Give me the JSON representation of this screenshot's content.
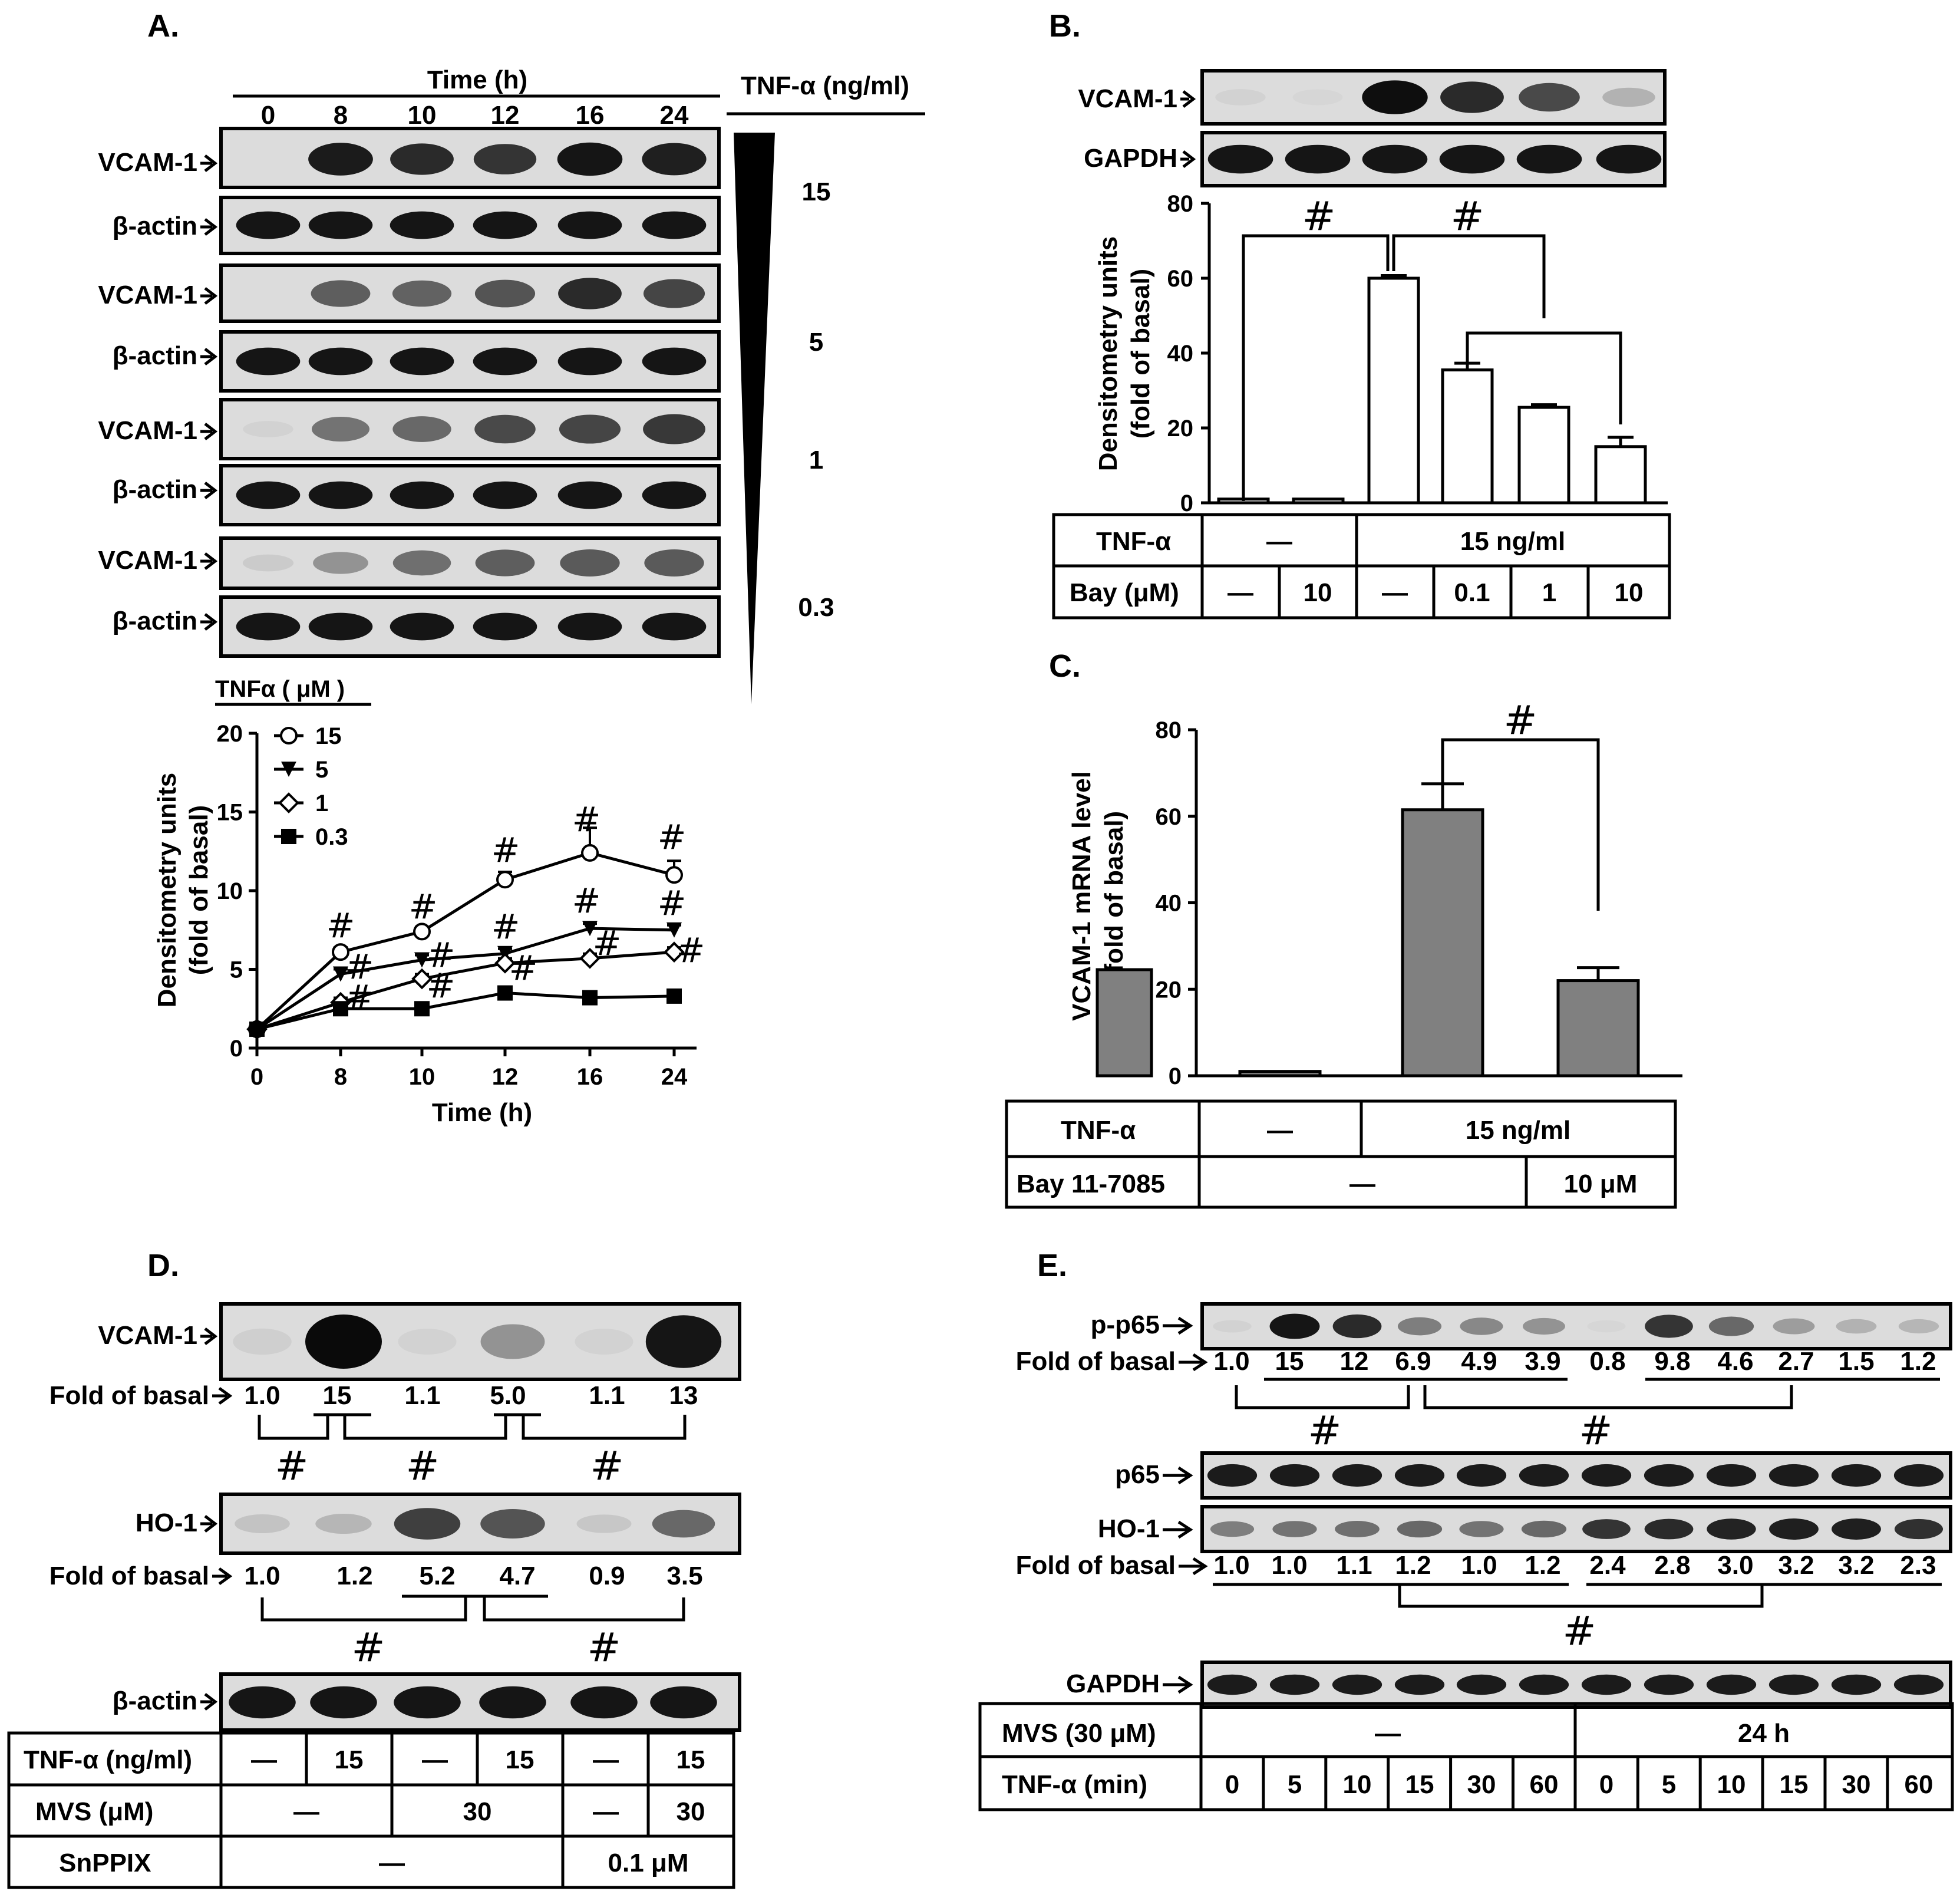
{
  "panels": {
    "A": {
      "letter": "A.",
      "time_header": "Time (h)",
      "times": [
        "0",
        "8",
        "10",
        "12",
        "16",
        "24"
      ],
      "tnf_header": "TNF-α (ng/ml)",
      "doses": [
        "15",
        "5",
        "1",
        "0.3"
      ],
      "target_label": "VCAM-1",
      "control_label": "β-actin",
      "band_levels": [
        [
          0.0,
          0.92,
          0.85,
          0.8,
          0.95,
          0.9
        ],
        [
          0.0,
          0.6,
          0.58,
          0.65,
          0.85,
          0.72
        ],
        [
          0.05,
          0.5,
          0.55,
          0.7,
          0.72,
          0.78
        ],
        [
          0.08,
          0.35,
          0.52,
          0.6,
          0.62,
          0.62
        ]
      ]
    },
    "B": {
      "letter": "B.",
      "target_label": "VCAM-1",
      "control_label": "GAPDH",
      "band_levels": [
        0.05,
        0.03,
        0.98,
        0.85,
        0.7,
        0.2
      ],
      "table": {
        "row1_label": "TNF-α",
        "row1_cells": [
          "—",
          "15 ng/ml"
        ],
        "row2_label": "Bay (μM)",
        "row2_cells": [
          "—",
          "10",
          "—",
          "0.1",
          "1",
          "10"
        ]
      }
    },
    "C": {
      "letter": "C.",
      "table": {
        "row1_label": "TNF-α",
        "row1_cells": [
          "—",
          "15 ng/ml"
        ],
        "row2_label": "Bay 11-7085",
        "row2_cells": [
          "—",
          "10 μM"
        ]
      }
    },
    "D": {
      "letter": "D.",
      "vcam_label": "VCAM-1",
      "ho1_label": "HO-1",
      "actin_label": "β-actin",
      "fold_label": "Fold of basal",
      "vcam_fold": [
        "1.0",
        "15",
        "1.1",
        "5.0",
        "1.1",
        "13"
      ],
      "ho1_fold": [
        "1.0",
        "1.2",
        "5.2",
        "4.7",
        "0.9",
        "3.5"
      ],
      "vcam_levels": [
        0.06,
        1.0,
        0.05,
        0.35,
        0.05,
        0.95
      ],
      "ho1_levels": [
        0.12,
        0.18,
        0.75,
        0.65,
        0.1,
        0.55
      ],
      "table": {
        "row1_label": "TNF-α (ng/ml)",
        "row1_cells": [
          "—",
          "15",
          "—",
          "15",
          "—",
          "15"
        ],
        "row2_label": "MVS (μM)",
        "row2_cells": [
          "—",
          "30",
          "—",
          "30"
        ],
        "row3_label": "SnPPIX",
        "row3_cells": [
          "—",
          "0.1 μM"
        ]
      }
    },
    "E": {
      "letter": "E.",
      "pp65_label": "p-p65",
      "p65_label": "p65",
      "ho1_label": "HO-1",
      "gapdh_label": "GAPDH",
      "fold_label": "Fold of basal",
      "pp65_fold": [
        "1.0",
        "15",
        "12",
        "6.9",
        "4.9",
        "3.9",
        "0.8",
        "9.8",
        "4.6",
        "2.7",
        "1.5",
        "1.2"
      ],
      "ho1_fold": [
        "1.0",
        "1.0",
        "1.1",
        "1.2",
        "1.0",
        "1.2",
        "2.4",
        "2.8",
        "3.0",
        "3.2",
        "3.2",
        "2.3"
      ],
      "pp65_levels": [
        0.05,
        0.95,
        0.85,
        0.45,
        0.4,
        0.35,
        0.03,
        0.8,
        0.55,
        0.3,
        0.2,
        0.18
      ],
      "ho1_levels": [
        0.45,
        0.5,
        0.52,
        0.55,
        0.5,
        0.55,
        0.8,
        0.85,
        0.88,
        0.9,
        0.9,
        0.82
      ],
      "table": {
        "row1_label": "MVS (30 μM)",
        "row1_cells": [
          "—",
          "24 h"
        ],
        "row2_label": "TNF-α (min)",
        "row2_cells": [
          "0",
          "5",
          "10",
          "15",
          "30",
          "60",
          "0",
          "5",
          "10",
          "15",
          "30",
          "60"
        ]
      }
    }
  },
  "chart_data": [
    {
      "id": "A",
      "type": "line",
      "xlabel": "Time (h)",
      "ylabel_line1": "Densitometry units",
      "ylabel_line2": "(fold of basal)",
      "legend_title": "TNFα ( μM )",
      "legend_position": "top-left",
      "categories": [
        "0",
        "8",
        "10",
        "12",
        "16",
        "24"
      ],
      "yticks": [
        "0",
        "5",
        "10",
        "15",
        "20"
      ],
      "ylim": [
        0,
        20
      ],
      "series": [
        {
          "name": "15",
          "marker": "circle-open",
          "values": [
            1.2,
            6.1,
            7.4,
            10.7,
            12.4,
            11.0
          ],
          "errors": [
            0,
            0.3,
            0.3,
            0.5,
            1.6,
            0.9
          ]
        },
        {
          "name": "5",
          "marker": "triangle-down",
          "values": [
            1.2,
            4.7,
            5.6,
            6.0,
            7.6,
            7.5
          ],
          "errors": [
            0,
            0.3,
            0.3,
            0.3,
            0.3,
            0.3
          ]
        },
        {
          "name": "1",
          "marker": "diamond-open",
          "values": [
            1.2,
            2.9,
            4.4,
            5.4,
            5.7,
            6.1
          ],
          "errors": [
            0,
            0.3,
            0.3,
            0.3,
            0.3,
            0.3
          ]
        },
        {
          "name": "0.3",
          "marker": "square",
          "values": [
            1.2,
            2.5,
            2.5,
            3.5,
            3.2,
            3.3
          ],
          "errors": [
            0,
            0.2,
            0.2,
            0.2,
            0.2,
            0.2
          ]
        }
      ],
      "annotations": [
        "#",
        "#",
        "#",
        "#",
        "#",
        "#",
        "#",
        "#",
        "#",
        "#",
        "#",
        "#",
        "#",
        "#",
        "#"
      ]
    },
    {
      "id": "B",
      "type": "bar",
      "ylabel_line1": "Densitometry units",
      "ylabel_line2": "(fold of basal)",
      "yticks": [
        "0",
        "20",
        "40",
        "60",
        "80"
      ],
      "ylim": [
        0,
        80
      ],
      "values": [
        1,
        1,
        60,
        35.5,
        25.5,
        15
      ],
      "errors": [
        0,
        0,
        0.7,
        1.8,
        0.7,
        2.5
      ],
      "bar_color": "#ffffff",
      "annotations": [
        "#",
        "#"
      ]
    },
    {
      "id": "C",
      "type": "bar",
      "ylabel_line1": "VCAM-1 mRNA level",
      "ylabel_line2": "(fold of basal)",
      "yticks": [
        "0",
        "20",
        "40",
        "60",
        "80"
      ],
      "ylim": [
        0,
        80
      ],
      "values": [
        1,
        61.5,
        22
      ],
      "errors": [
        0,
        6,
        3
      ],
      "bar_color": "#808080",
      "annotations": [
        "#"
      ]
    }
  ]
}
